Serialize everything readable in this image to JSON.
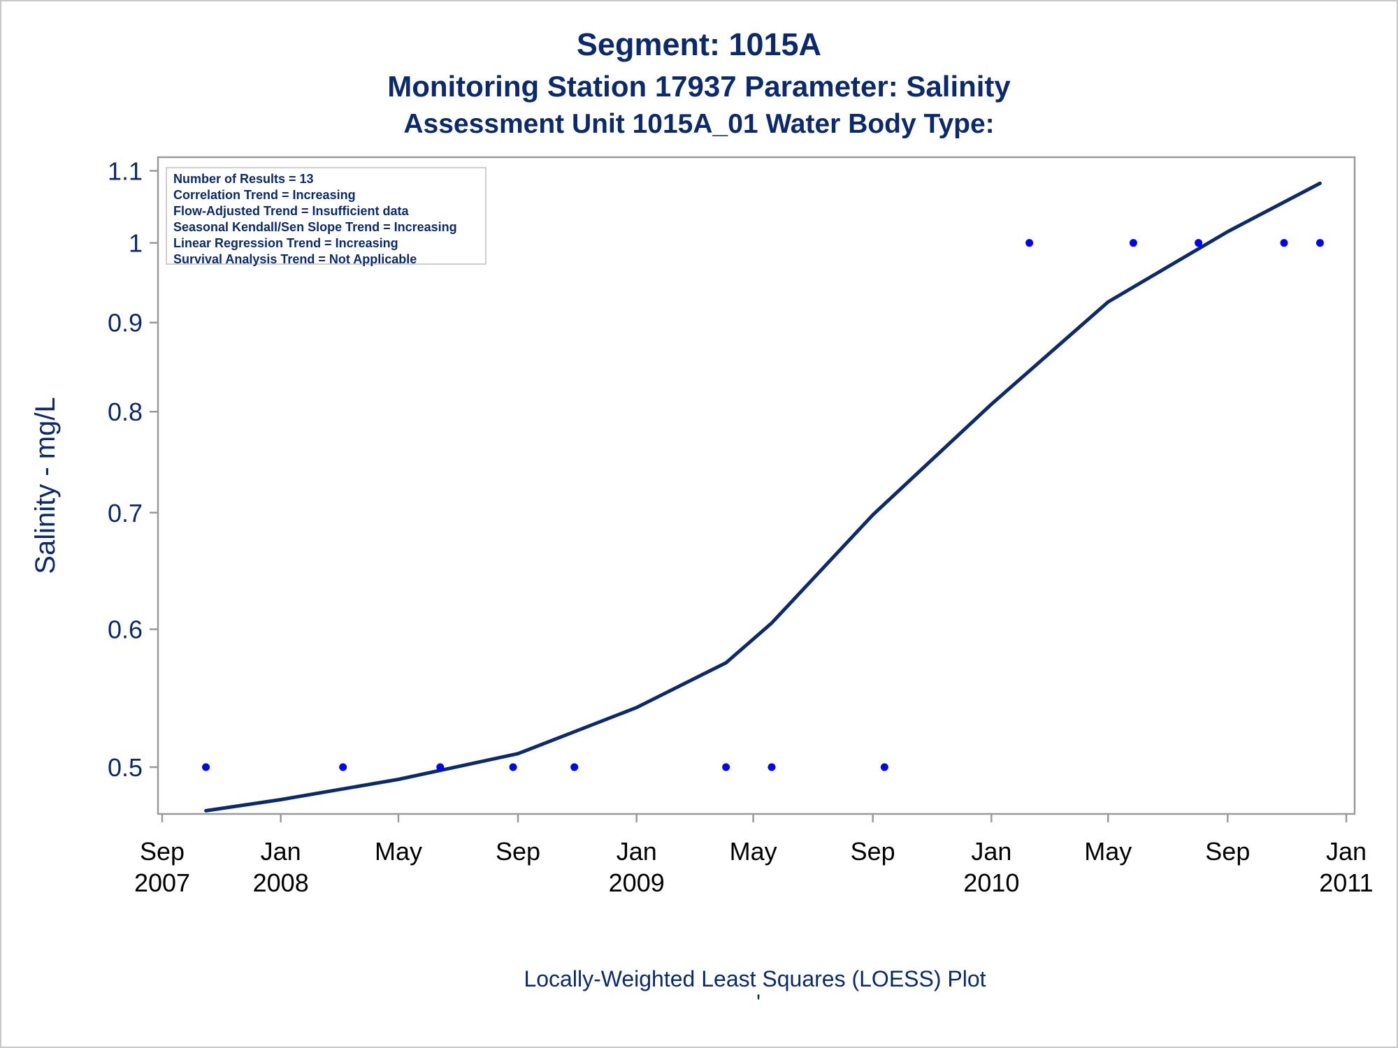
{
  "titles": {
    "line1": "Segment: 1015A",
    "line2": "Monitoring Station 17937 Parameter: Salinity",
    "line3": "Assessment Unit 1015A_01    Water Body Type:"
  },
  "stats_box": [
    "Number of Results = 13",
    "Correlation Trend = Increasing",
    "Flow-Adjusted Trend = Insufficient data",
    "Seasonal Kendall/Sen Slope Trend = Increasing",
    "Linear Regression Trend = Increasing",
    "Survival Analysis Trend = Not Applicable"
  ],
  "footnote": "Locally-Weighted Least Squares (LOESS) Plot",
  "footnote_mark": "'",
  "colors": {
    "text": "#0b2a6e",
    "points": "#0000ff",
    "loess_line": "#0b2a6e",
    "frame": "#9a9a9a"
  },
  "chart_data": {
    "type": "scatter",
    "ylabel": "Salinity - mg/L",
    "y_scale": "log",
    "ylim": [
      0.47,
      1.12
    ],
    "xlim": [
      "2007-09-01",
      "2011-01-01"
    ],
    "yticks": [
      {
        "value": 0.5,
        "label": "0.5"
      },
      {
        "value": 0.6,
        "label": "0.6"
      },
      {
        "value": 0.7,
        "label": "0.7"
      },
      {
        "value": 0.8,
        "label": "0.8"
      },
      {
        "value": 0.9,
        "label": "0.9"
      },
      {
        "value": 1.0,
        "label": "1"
      },
      {
        "value": 1.1,
        "label": "1.1"
      }
    ],
    "xticks": [
      {
        "date": "2007-09-01",
        "month": "Sep",
        "year": "2007"
      },
      {
        "date": "2008-01-01",
        "month": "Jan",
        "year": "2008"
      },
      {
        "date": "2008-05-01",
        "month": "May",
        "year": ""
      },
      {
        "date": "2008-09-01",
        "month": "Sep",
        "year": ""
      },
      {
        "date": "2009-01-01",
        "month": "Jan",
        "year": "2009"
      },
      {
        "date": "2009-05-01",
        "month": "May",
        "year": ""
      },
      {
        "date": "2009-09-01",
        "month": "Sep",
        "year": ""
      },
      {
        "date": "2010-01-01",
        "month": "Jan",
        "year": "2010"
      },
      {
        "date": "2010-05-01",
        "month": "May",
        "year": ""
      },
      {
        "date": "2010-09-01",
        "month": "Sep",
        "year": ""
      },
      {
        "date": "2011-01-01",
        "month": "Jan",
        "year": "2011"
      }
    ],
    "points": [
      {
        "date": "2007-10-16",
        "value": 0.5
      },
      {
        "date": "2008-03-05",
        "value": 0.5
      },
      {
        "date": "2008-06-13",
        "value": 0.5
      },
      {
        "date": "2008-08-27",
        "value": 0.5
      },
      {
        "date": "2008-10-29",
        "value": 0.5
      },
      {
        "date": "2009-04-03",
        "value": 0.5
      },
      {
        "date": "2009-05-20",
        "value": 0.5
      },
      {
        "date": "2009-09-13",
        "value": 0.5
      },
      {
        "date": "2010-02-09",
        "value": 1.0
      },
      {
        "date": "2010-05-27",
        "value": 1.0
      },
      {
        "date": "2010-08-02",
        "value": 1.0
      },
      {
        "date": "2010-10-29",
        "value": 1.0
      },
      {
        "date": "2010-12-05",
        "value": 1.0
      }
    ],
    "loess": [
      {
        "date": "2007-10-16",
        "value": 0.472
      },
      {
        "date": "2008-01-01",
        "value": 0.479
      },
      {
        "date": "2008-05-01",
        "value": 0.492
      },
      {
        "date": "2008-09-01",
        "value": 0.509
      },
      {
        "date": "2009-01-01",
        "value": 0.541
      },
      {
        "date": "2009-04-03",
        "value": 0.574
      },
      {
        "date": "2009-05-20",
        "value": 0.605
      },
      {
        "date": "2009-09-01",
        "value": 0.698
      },
      {
        "date": "2010-01-01",
        "value": 0.808
      },
      {
        "date": "2010-05-01",
        "value": 0.925
      },
      {
        "date": "2010-09-01",
        "value": 1.015
      },
      {
        "date": "2010-12-05",
        "value": 1.082
      }
    ]
  }
}
